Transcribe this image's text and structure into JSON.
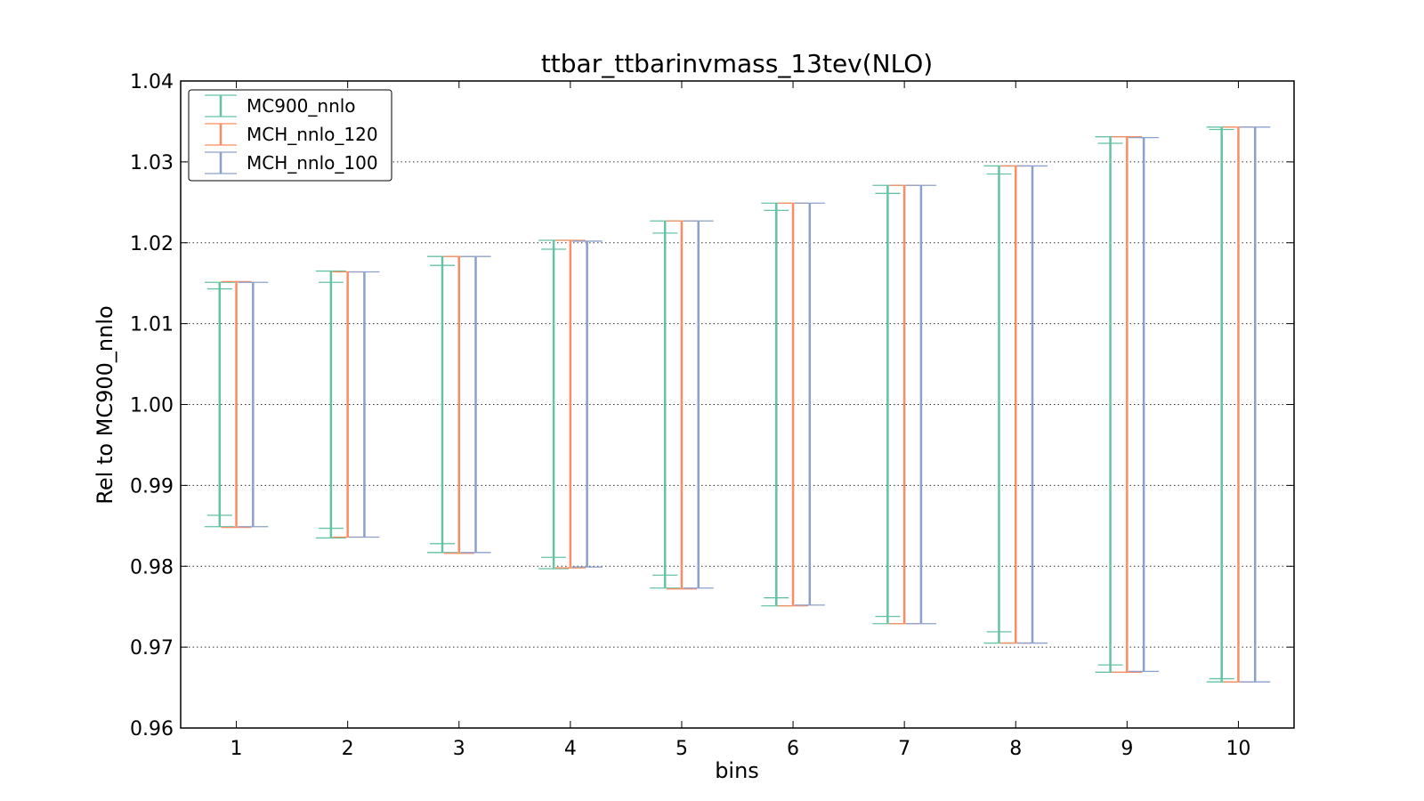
{
  "chart_data": {
    "type": "errorbar",
    "title": "ttbar_ttbarinvmass_13tev(NLO)",
    "xlabel": "bins",
    "ylabel": "Rel to MC900_nnlo",
    "xlim": [
      0.5,
      10.5
    ],
    "ylim": [
      0.96,
      1.04
    ],
    "x_ticks": [
      "1",
      "2",
      "3",
      "4",
      "5",
      "6",
      "7",
      "8",
      "9",
      "10"
    ],
    "y_ticks": [
      "0.96",
      "0.97",
      "0.98",
      "0.99",
      "1.00",
      "1.01",
      "1.02",
      "1.03",
      "1.04"
    ],
    "grid": "horizontal dotted",
    "legend_position": "top-left",
    "series": [
      {
        "name": "MC900_nnlo",
        "color": "#66c2a5",
        "x": [
          1,
          2,
          3,
          4,
          5,
          6,
          7,
          8,
          9,
          10
        ],
        "low": [
          0.9849,
          0.9835,
          0.9817,
          0.9797,
          0.9773,
          0.9751,
          0.9729,
          0.9705,
          0.9669,
          0.9657
        ],
        "high": [
          1.0151,
          1.0165,
          1.0183,
          1.0203,
          1.0227,
          1.0249,
          1.0271,
          1.0295,
          1.0331,
          1.0343
        ],
        "inner_low": [
          0.9863,
          0.9847,
          0.9828,
          0.9811,
          0.9789,
          0.9761,
          0.9738,
          0.9719,
          0.9678,
          0.9661
        ],
        "inner_high": [
          1.0143,
          1.0151,
          1.0172,
          1.0192,
          1.0212,
          1.024,
          1.0261,
          1.0285,
          1.0323,
          1.034
        ]
      },
      {
        "name": "MCH_nnlo_120",
        "color": "#fc8d62",
        "x": [
          1,
          2,
          3,
          4,
          5,
          6,
          7,
          8,
          9,
          10
        ],
        "low": [
          0.9848,
          0.9836,
          0.9816,
          0.9798,
          0.9772,
          0.9751,
          0.9729,
          0.9705,
          0.9669,
          0.9657
        ],
        "high": [
          1.0152,
          1.0164,
          1.0183,
          1.0203,
          1.0227,
          1.0249,
          1.0271,
          1.0295,
          1.0331,
          1.0343
        ]
      },
      {
        "name": "MCH_nnlo_100",
        "color": "#8da0cb",
        "x": [
          1,
          2,
          3,
          4,
          5,
          6,
          7,
          8,
          9,
          10
        ],
        "low": [
          0.9849,
          0.9836,
          0.9817,
          0.9799,
          0.9773,
          0.9752,
          0.9729,
          0.9705,
          0.967,
          0.9657
        ],
        "high": [
          1.0151,
          1.0164,
          1.0183,
          1.0202,
          1.0227,
          1.0249,
          1.0271,
          1.0295,
          1.033,
          1.0343
        ]
      }
    ]
  }
}
